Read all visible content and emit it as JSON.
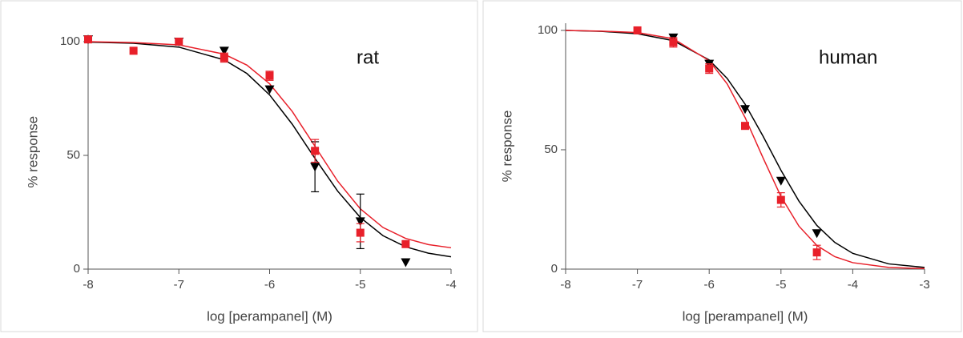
{
  "chart_data": [
    {
      "type": "scatter",
      "annotation": "rat",
      "xlabel": "log [perampanel] (M)",
      "ylabel": "% response",
      "xlim": [
        -8,
        -4
      ],
      "ylim": [
        0,
        103
      ],
      "xticks": [
        -8,
        -7,
        -6,
        -5,
        -4
      ],
      "yticks": [
        0,
        50,
        100
      ],
      "series": [
        {
          "color": "#000000",
          "style": "line",
          "x": [
            -8,
            -7.5,
            -7,
            -6.5,
            -6.25,
            -6,
            -5.75,
            -5.5,
            -5.25,
            -5,
            -4.75,
            -4.5,
            -4.25,
            -4
          ],
          "values": [
            99.8,
            99.3,
            97.6,
            92.0,
            86.0,
            76.6,
            63.7,
            48.7,
            34.3,
            22.7,
            14.7,
            9.8,
            7.0,
            5.4
          ]
        },
        {
          "color": "#e8202a",
          "style": "line",
          "x": [
            -8,
            -7.5,
            -7,
            -6.5,
            -6.25,
            -6,
            -5.75,
            -5.5,
            -5.25,
            -5,
            -4.75,
            -4.5,
            -4.25,
            -4
          ],
          "values": [
            100,
            99.6,
            98.6,
            94.5,
            89.7,
            81.5,
            69.3,
            54,
            38.7,
            26.5,
            18.3,
            13.5,
            10.8,
            9.4
          ]
        },
        {
          "color": "#000000",
          "style": "triangle",
          "x": [
            -8,
            -7,
            -6.5,
            -6,
            -5.5,
            -5,
            -4.5
          ],
          "values": [
            101,
            100,
            96,
            79,
            45,
            21,
            3
          ],
          "errors": [
            null,
            null,
            null,
            null,
            11,
            12,
            null
          ]
        },
        {
          "color": "#e8202a",
          "style": "square",
          "x": [
            -8,
            -7.5,
            -7,
            -6.5,
            -6,
            -5.5,
            -5,
            -4.5
          ],
          "values": [
            101,
            96,
            100,
            93,
            85,
            52,
            16,
            11
          ],
          "errors": [
            null,
            null,
            null,
            2,
            2,
            5,
            4,
            null
          ]
        }
      ]
    },
    {
      "type": "scatter",
      "annotation": "human",
      "xlabel": "log [perampanel] (M)",
      "ylabel": "% response",
      "xlim": [
        -8,
        -3
      ],
      "ylim": [
        0,
        103
      ],
      "xticks": [
        -8,
        -7,
        -6,
        -5,
        -4,
        -3
      ],
      "yticks": [
        0,
        50,
        100
      ],
      "series": [
        {
          "color": "#000000",
          "style": "line",
          "x": [
            -8,
            -7.5,
            -7,
            -6.5,
            -6,
            -5.75,
            -5.5,
            -5.25,
            -5,
            -4.75,
            -4.5,
            -4.25,
            -4,
            -3.5,
            -3
          ],
          "values": [
            100,
            99.6,
            98.6,
            95.7,
            87.6,
            79.9,
            69.1,
            55.7,
            41.4,
            28.5,
            18.3,
            11.2,
            6.6,
            2.2,
            0.7
          ]
        },
        {
          "color": "#e8202a",
          "style": "line",
          "x": [
            -8,
            -7.5,
            -7,
            -6.5,
            -6,
            -5.75,
            -5.5,
            -5.25,
            -5,
            -4.75,
            -4.5,
            -4.25,
            -4,
            -3.5,
            -3
          ],
          "values": [
            100,
            99.7,
            99.1,
            96.5,
            87.3,
            77.6,
            63.5,
            46.6,
            30.4,
            18.0,
            9.9,
            5.2,
            2.7,
            0.7,
            0.2
          ]
        },
        {
          "color": "#000000",
          "style": "triangle",
          "x": [
            -6.5,
            -6,
            -5.5,
            -5,
            -4.5
          ],
          "values": [
            97,
            86,
            67,
            37,
            15
          ],
          "errors": [
            null,
            null,
            null,
            null,
            null
          ]
        },
        {
          "color": "#e8202a",
          "style": "square",
          "x": [
            -7,
            -6.5,
            -6,
            -5.5,
            -5,
            -4.5
          ],
          "values": [
            100,
            95,
            84,
            60,
            29,
            7
          ],
          "errors": [
            null,
            2,
            2,
            null,
            3,
            3
          ]
        }
      ]
    }
  ]
}
